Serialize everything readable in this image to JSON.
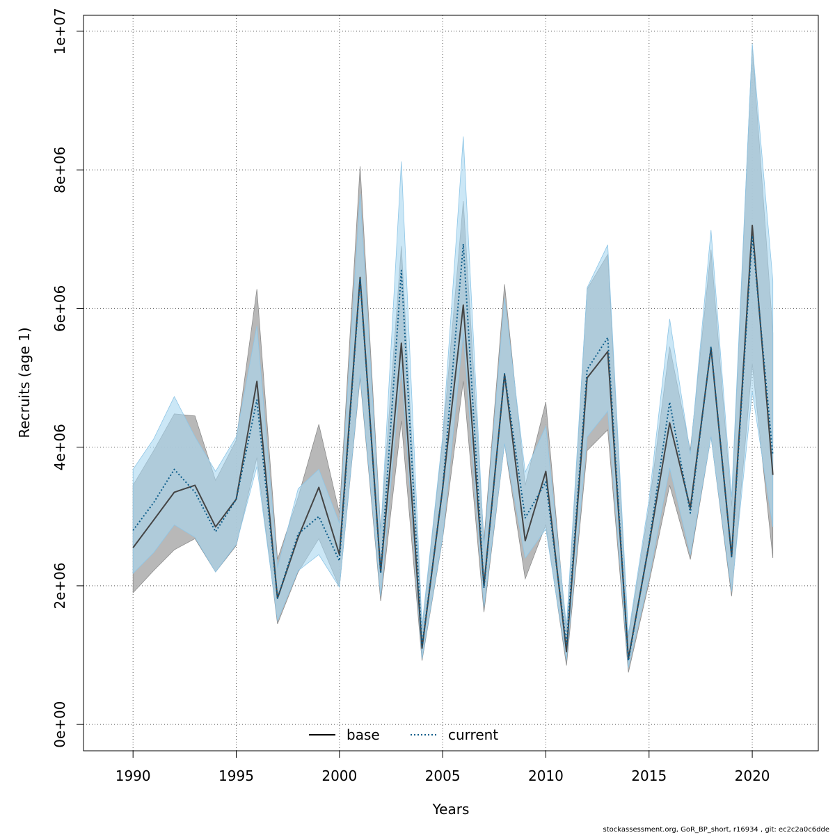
{
  "chart_data": {
    "type": "line",
    "xlabel": "Years",
    "ylabel": "Recruits (age 1)",
    "xlim": [
      1987.6,
      2023.2
    ],
    "ylim": [
      -380000,
      10230000
    ],
    "xticks": [
      1990,
      1995,
      2000,
      2005,
      2010,
      2015,
      2020
    ],
    "yticks": [
      0,
      2000000,
      4000000,
      6000000,
      8000000,
      10000000
    ],
    "ytick_labels": [
      "0e+00",
      "2e+06",
      "4e+06",
      "6e+06",
      "8e+06",
      "1e+07"
    ],
    "grid": true,
    "legend_position": "bottom",
    "x": [
      1990,
      1991,
      1992,
      1993,
      1994,
      1995,
      1996,
      1997,
      1998,
      1999,
      2000,
      2001,
      2002,
      2003,
      2004,
      2005,
      2006,
      2007,
      2008,
      2009,
      2010,
      2011,
      2012,
      2013,
      2014,
      2015,
      2016,
      2017,
      2018,
      2019,
      2020,
      2021
    ],
    "series": [
      {
        "name": "base",
        "line_style": "solid",
        "line_color": "#444444",
        "band_color": "#b0b0b0",
        "values": [
          2550000,
          2950000,
          3350000,
          3450000,
          2850000,
          3250000,
          4950000,
          1820000,
          2700000,
          3420000,
          2450000,
          6450000,
          2200000,
          5500000,
          1100000,
          3400000,
          6050000,
          2000000,
          5050000,
          2650000,
          3650000,
          1050000,
          5000000,
          5380000,
          950000,
          2600000,
          4350000,
          3120000,
          5430000,
          2430000,
          7200000,
          3600000
        ],
        "upper": [
          3450000,
          3950000,
          4480000,
          4450000,
          3520000,
          4100000,
          6280000,
          2380000,
          3280000,
          4330000,
          3050000,
          8050000,
          2800000,
          6900000,
          1380000,
          4100000,
          7550000,
          2650000,
          6350000,
          3450000,
          4650000,
          1320000,
          6280000,
          6780000,
          1250000,
          3150000,
          5450000,
          3950000,
          6850000,
          3150000,
          9800000,
          5650000
        ],
        "lower": [
          1900000,
          2220000,
          2520000,
          2680000,
          2200000,
          2580000,
          3850000,
          1450000,
          2200000,
          2680000,
          1980000,
          5000000,
          1780000,
          4380000,
          920000,
          2680000,
          4950000,
          1620000,
          4050000,
          2100000,
          2880000,
          850000,
          3950000,
          4250000,
          750000,
          2050000,
          3450000,
          2380000,
          4150000,
          1850000,
          5200000,
          2400000
        ]
      },
      {
        "name": "current",
        "line_style": "dotted",
        "line_color": "#0b5c8a",
        "band_color": "#a9d7f0",
        "values": [
          2800000,
          3200000,
          3680000,
          3350000,
          2780000,
          3250000,
          4680000,
          1820000,
          2750000,
          3000000,
          2360000,
          6430000,
          2180000,
          6550000,
          1130000,
          3400000,
          6930000,
          1970000,
          5060000,
          2980000,
          3500000,
          1150000,
          5120000,
          5580000,
          920000,
          2620000,
          4650000,
          3050000,
          5450000,
          2420000,
          7050000,
          3880000
        ],
        "upper": [
          3680000,
          4120000,
          4730000,
          4150000,
          3650000,
          4150000,
          5750000,
          2260000,
          3400000,
          3680000,
          2900000,
          7650000,
          2750000,
          8120000,
          1420000,
          4150000,
          8480000,
          2560000,
          6150000,
          3640000,
          4300000,
          1420000,
          6300000,
          6920000,
          1300000,
          3250000,
          5850000,
          3900000,
          7130000,
          3280000,
          9820000,
          6400000
        ],
        "lower": [
          2180000,
          2480000,
          2880000,
          2700000,
          2200000,
          2600000,
          3720000,
          1500000,
          2220000,
          2450000,
          1980000,
          5050000,
          1850000,
          5150000,
          950000,
          2700000,
          5650000,
          1700000,
          4050000,
          2400000,
          2820000,
          930000,
          4150000,
          4520000,
          820000,
          2120000,
          3700000,
          2450000,
          4150000,
          1920000,
          4800000,
          2850000
        ]
      }
    ]
  },
  "footer": "stockassessment.org, GoR_BP_short, r16934 , git: ec2c2a0c6dde"
}
